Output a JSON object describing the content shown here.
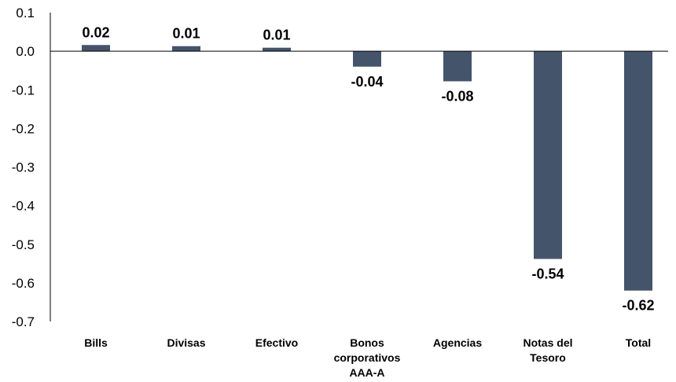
{
  "chart_data": {
    "type": "bar",
    "title": "",
    "xlabel": "",
    "ylabel": "",
    "categories": [
      [
        "Bills"
      ],
      [
        "Divisas"
      ],
      [
        "Efectivo"
      ],
      [
        "Bonos",
        "corporativos",
        "AAA-A"
      ],
      [
        "Agencias"
      ],
      [
        "Notas del",
        "Tesoro"
      ],
      [
        "Total"
      ]
    ],
    "values": [
      0.016,
      0.013,
      0.009,
      -0.04,
      -0.078,
      -0.538,
      -0.62
    ],
    "data_labels": [
      "0.02",
      "0.01",
      "0.01",
      "-0.04",
      "-0.08",
      "-0.54",
      "-0.62"
    ],
    "yticks": [
      "0.1",
      "0.0",
      "-0.1",
      "-0.2",
      "-0.3",
      "-0.4",
      "-0.5",
      "-0.6",
      "-0.7"
    ],
    "ylim": [
      -0.7,
      0.1
    ],
    "grid": false,
    "legend": "none",
    "bar_color": "#44546a",
    "axis_color": "#000000"
  }
}
